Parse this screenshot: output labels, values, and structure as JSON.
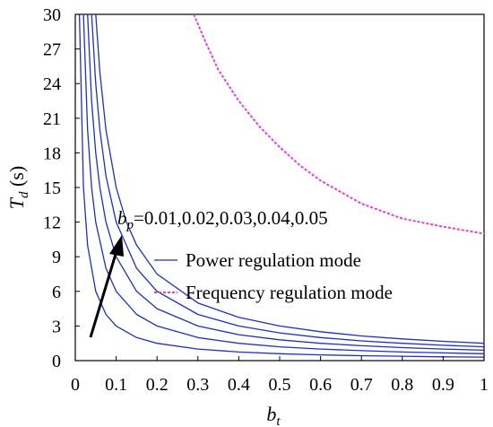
{
  "chart_data": {
    "type": "line",
    "title": "",
    "xlabel": {
      "main": "b",
      "sub": "t"
    },
    "ylabel": {
      "main": "T",
      "sub": "d",
      "unit": " (s)"
    },
    "xlim": [
      0,
      1
    ],
    "ylim": [
      0,
      30
    ],
    "xticks": [
      "0",
      "0.1",
      "0.2",
      "0.3",
      "0.4",
      "0.5",
      "0.6",
      "0.7",
      "0.8",
      "0.9",
      "1"
    ],
    "yticks": [
      "0",
      "3",
      "6",
      "9",
      "12",
      "15",
      "18",
      "21",
      "24",
      "27",
      "30"
    ],
    "grid": false,
    "legend_position": "center-right",
    "legend": [
      {
        "label": "Power regulation mode",
        "color": "#1f2fbf",
        "style": "solid"
      },
      {
        "label": "Frequency regulation mode",
        "color": "#e83cd8",
        "style": "dotted"
      }
    ],
    "annotation": {
      "main": "b",
      "sub": "p",
      "text": "=0.01,0.02,0.03,0.04,0.05"
    },
    "series": [
      {
        "group": "Power regulation mode",
        "bp": 0.01,
        "x": [
          0.01,
          0.02,
          0.03,
          0.05,
          0.075,
          0.1,
          0.15,
          0.2,
          0.3,
          0.4,
          0.5,
          0.6,
          0.7,
          0.8,
          0.9,
          1.0
        ],
        "y": [
          30,
          15,
          10,
          6,
          4,
          3,
          2,
          1.5,
          1,
          0.75,
          0.6,
          0.5,
          0.43,
          0.38,
          0.33,
          0.3
        ]
      },
      {
        "group": "Power regulation mode",
        "bp": 0.02,
        "x": [
          0.02,
          0.03,
          0.04,
          0.05,
          0.075,
          0.1,
          0.15,
          0.2,
          0.3,
          0.4,
          0.5,
          0.6,
          0.7,
          0.8,
          0.9,
          1.0
        ],
        "y": [
          30,
          20,
          15,
          12,
          8,
          6,
          4,
          3,
          2,
          1.5,
          1.2,
          1,
          0.86,
          0.75,
          0.67,
          0.6
        ]
      },
      {
        "group": "Power regulation mode",
        "bp": 0.03,
        "x": [
          0.03,
          0.04,
          0.05,
          0.06,
          0.075,
          0.1,
          0.15,
          0.2,
          0.3,
          0.4,
          0.5,
          0.6,
          0.7,
          0.8,
          0.9,
          1.0
        ],
        "y": [
          30,
          22.5,
          18,
          15,
          12,
          9,
          6,
          4.5,
          3,
          2.25,
          1.8,
          1.5,
          1.29,
          1.13,
          1,
          0.9
        ]
      },
      {
        "group": "Power regulation mode",
        "bp": 0.04,
        "x": [
          0.04,
          0.05,
          0.06,
          0.075,
          0.1,
          0.15,
          0.2,
          0.3,
          0.4,
          0.5,
          0.6,
          0.7,
          0.8,
          0.9,
          1.0
        ],
        "y": [
          30,
          24,
          20,
          16,
          12,
          8,
          6,
          4,
          3,
          2.4,
          2,
          1.71,
          1.5,
          1.33,
          1.2
        ]
      },
      {
        "group": "Power regulation mode",
        "bp": 0.05,
        "x": [
          0.05,
          0.06,
          0.075,
          0.1,
          0.125,
          0.15,
          0.2,
          0.3,
          0.4,
          0.5,
          0.6,
          0.7,
          0.8,
          0.9,
          1.0
        ],
        "y": [
          30,
          25,
          20,
          15,
          12,
          10,
          7.5,
          5,
          3.75,
          3,
          2.5,
          2.14,
          1.88,
          1.67,
          1.5
        ]
      },
      {
        "group": "Frequency regulation mode",
        "x": [
          0.29,
          0.32,
          0.35,
          0.4,
          0.45,
          0.5,
          0.55,
          0.6,
          0.7,
          0.8,
          0.9,
          1.0
        ],
        "y": [
          30,
          27.5,
          25.2,
          22.5,
          20.3,
          18.5,
          16.9,
          15.6,
          13.6,
          12.3,
          11.6,
          11
        ]
      }
    ]
  }
}
